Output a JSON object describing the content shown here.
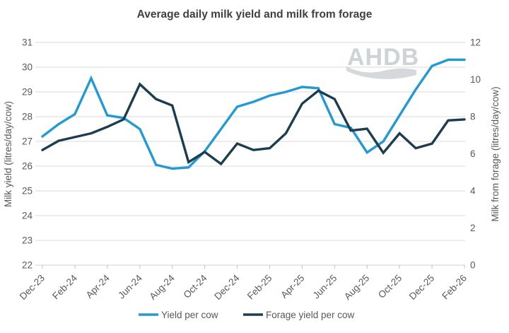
{
  "chart_data": {
    "type": "line",
    "title": "Average daily milk yield and milk from forage",
    "categories": [
      "Dec-23",
      "Jan-24",
      "Feb-24",
      "Mar-24",
      "Apr-24",
      "May-24",
      "Jun-24",
      "Jul-24",
      "Aug-24",
      "Sep-24",
      "Oct-24",
      "Nov-24",
      "Dec-24",
      "Jan-25",
      "Feb-25",
      "Mar-25",
      "Apr-25",
      "May-25",
      "Jun-25",
      "Jul-25",
      "Aug-25",
      "Sep-25",
      "Oct-25",
      "Nov-25",
      "Dec-25",
      "Jan-26",
      "Feb-26"
    ],
    "x_tick_labels": [
      "Dec-23",
      "Feb-24",
      "Apr-24",
      "Jun-24",
      "Aug-24",
      "Oct-24",
      "Dec-24",
      "Feb-25",
      "Apr-25",
      "Jun-25",
      "Aug-25",
      "Oct-25",
      "Dec-25",
      "Feb-26"
    ],
    "x_tick_every": 2,
    "left_axis": {
      "label": "Milk yield (litres/day/cow)",
      "min": 22,
      "max": 31,
      "tick_step": 1,
      "ticks": [
        22,
        23,
        24,
        25,
        26,
        27,
        28,
        29,
        30,
        31
      ]
    },
    "right_axis": {
      "label": "Milk  from forage (litres/day/cow)",
      "min": 0,
      "max": 12,
      "tick_step": 2,
      "ticks": [
        0,
        2,
        4,
        6,
        8,
        10,
        12
      ]
    },
    "series": [
      {
        "name": "Yield per cow",
        "axis": "left",
        "color": "#2499d4",
        "values": [
          27.2,
          27.7,
          28.1,
          29.55,
          28.05,
          27.95,
          27.5,
          26.05,
          25.9,
          25.95,
          26.6,
          27.5,
          28.4,
          28.6,
          28.85,
          29.0,
          29.2,
          29.15,
          27.7,
          27.55,
          26.55,
          27.0,
          28.05,
          29.1,
          30.05,
          30.3,
          30.3
        ]
      },
      {
        "name": "Forage yield per cow",
        "axis": "right",
        "color": "#1c3d4e",
        "values": [
          6.2,
          6.7,
          6.9,
          7.1,
          7.45,
          7.85,
          9.75,
          8.95,
          8.6,
          5.55,
          6.1,
          5.45,
          6.55,
          6.2,
          6.3,
          7.1,
          8.7,
          9.4,
          8.95,
          7.25,
          7.35,
          6.05,
          7.1,
          6.3,
          6.55,
          7.8,
          7.85
        ]
      }
    ],
    "grid": true,
    "legend_position": "bottom",
    "watermark": "AHDB",
    "colors": {
      "title": "#404040",
      "axis_text": "#595959",
      "gridline": "#d9d9d9",
      "axis_line": "#d0d0d0",
      "tick_mark": "#bfbfbf",
      "watermark": "#ced3d6",
      "background": "#ffffff"
    }
  }
}
